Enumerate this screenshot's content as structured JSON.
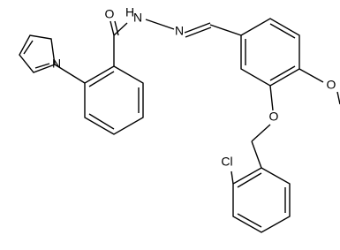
{
  "atoms": [
    {
      "label": "O"
    },
    {
      "label": "H"
    },
    {
      "label": "N"
    },
    {
      "label": "N"
    },
    {
      "label": "N"
    },
    {
      "label": "O"
    },
    {
      "label": "O"
    },
    {
      "label": "Cl"
    }
  ]
}
